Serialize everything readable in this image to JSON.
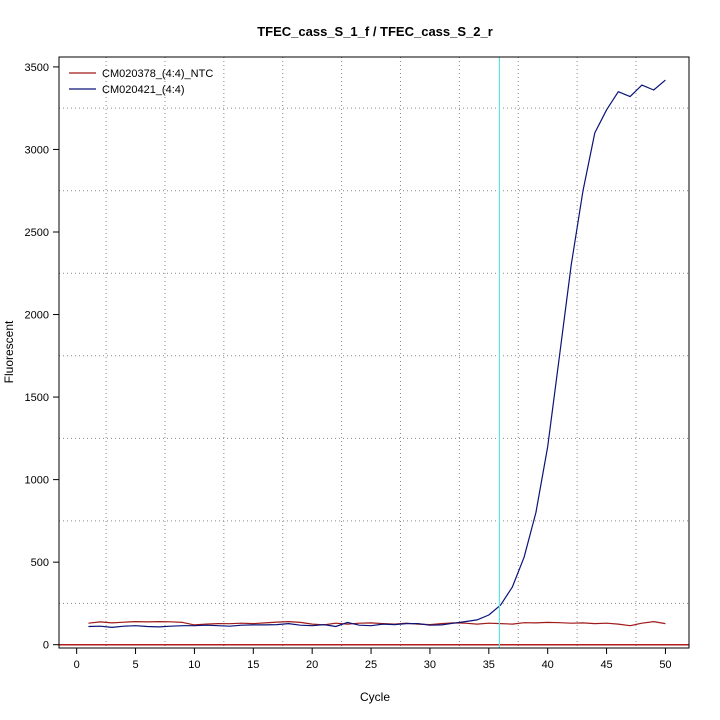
{
  "chart_data": {
    "type": "line",
    "title": "TFEC_cass_S_1_f / TFEC_cass_S_2_r",
    "xlabel": "Cycle",
    "ylabel": "Fluorescent",
    "xlim": [
      -1.5,
      52
    ],
    "ylim": [
      -20,
      3560
    ],
    "x_ticks": [
      0,
      5,
      10,
      15,
      20,
      25,
      30,
      35,
      40,
      45,
      50
    ],
    "y_ticks": [
      0,
      500,
      1000,
      1500,
      2000,
      2500,
      3000,
      3500
    ],
    "grid": true,
    "legend_position": "top-left",
    "threshold_cycle": 35.9,
    "threshold_color": "#5fe3e3",
    "baseline_color": "#b21e1e",
    "x": [
      1,
      2,
      3,
      4,
      5,
      6,
      7,
      8,
      9,
      10,
      11,
      12,
      13,
      14,
      15,
      16,
      17,
      18,
      19,
      20,
      21,
      22,
      23,
      24,
      25,
      26,
      27,
      28,
      29,
      30,
      31,
      32,
      33,
      34,
      35,
      36,
      37,
      38,
      39,
      40,
      41,
      42,
      43,
      44,
      45,
      46,
      47,
      48,
      49,
      50
    ],
    "series": [
      {
        "name": "CM020378_(4:4)_NTC",
        "color": "#a01a1a",
        "values": [
          130,
          138,
          132,
          136,
          140,
          138,
          140,
          139,
          135,
          120,
          125,
          128,
          127,
          130,
          128,
          132,
          137,
          140,
          135,
          125,
          120,
          130,
          125,
          130,
          132,
          128,
          125,
          130,
          125,
          122,
          128,
          132,
          130,
          125,
          130,
          128,
          125,
          133,
          132,
          135,
          133,
          130,
          132,
          128,
          130,
          125,
          115,
          130,
          140,
          128
        ]
      },
      {
        "name": "CM020421_(4:4)",
        "color": "#0a1478",
        "values": [
          110,
          112,
          105,
          112,
          115,
          110,
          108,
          112,
          115,
          115,
          118,
          115,
          112,
          118,
          120,
          120,
          122,
          128,
          118,
          115,
          122,
          110,
          135,
          118,
          115,
          125,
          122,
          128,
          128,
          118,
          120,
          130,
          140,
          150,
          180,
          240,
          350,
          530,
          800,
          1200,
          1750,
          2300,
          2750,
          3100,
          3240,
          3350,
          3320,
          3390,
          3360,
          3420
        ]
      }
    ]
  }
}
